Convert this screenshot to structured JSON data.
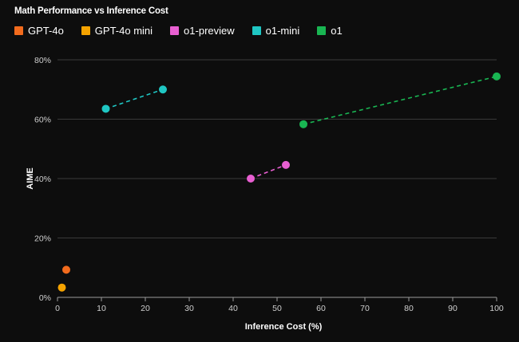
{
  "chart_data": {
    "type": "scatter",
    "title": "Math Performance vs Inference Cost",
    "xlabel": "Inference Cost (%)",
    "ylabel": "AIME",
    "xlim": [
      0,
      100
    ],
    "ylim": [
      0,
      80
    ],
    "x_ticks": [
      "0",
      "10",
      "20",
      "30",
      "40",
      "50",
      "60",
      "70",
      "80",
      "90",
      "100"
    ],
    "y_ticks": [
      "0%",
      "20%",
      "40%",
      "60%",
      "80%"
    ],
    "grid": "horizontal",
    "legend_position": "top-left",
    "series": [
      {
        "name": "GPT-4o",
        "color": "#f26b1d",
        "points": [
          {
            "x": 2,
            "y": 9.3
          }
        ],
        "connected": false
      },
      {
        "name": "GPT-4o mini",
        "color": "#f5a300",
        "points": [
          {
            "x": 1,
            "y": 3.3
          }
        ],
        "connected": false
      },
      {
        "name": "o1-preview",
        "color": "#e85fd1",
        "points": [
          {
            "x": 44,
            "y": 40
          },
          {
            "x": 52,
            "y": 44.6
          }
        ],
        "connected": true
      },
      {
        "name": "o1-mini",
        "color": "#1fc6c3",
        "points": [
          {
            "x": 11,
            "y": 63.5
          },
          {
            "x": 24,
            "y": 70
          }
        ],
        "connected": true
      },
      {
        "name": "o1",
        "color": "#19b552",
        "points": [
          {
            "x": 56,
            "y": 58.3
          },
          {
            "x": 100,
            "y": 74.4
          }
        ],
        "connected": true
      }
    ]
  }
}
